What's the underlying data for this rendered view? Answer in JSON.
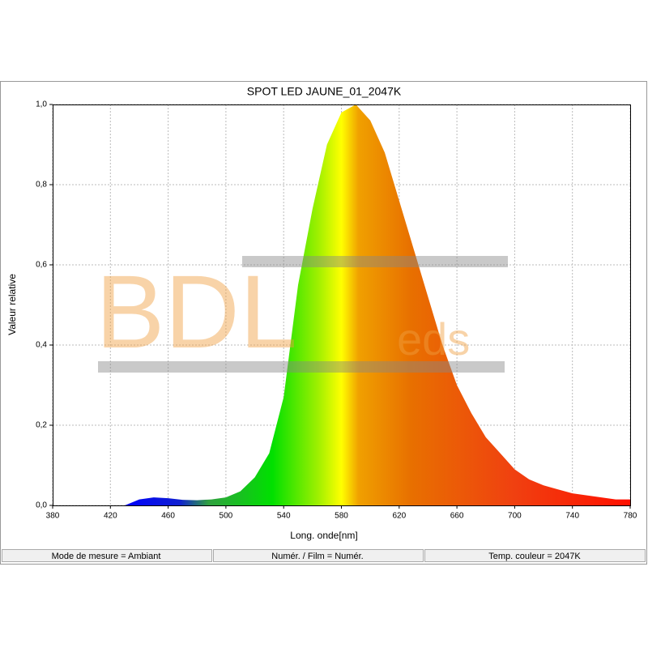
{
  "chart_data": {
    "type": "area",
    "title": "SPOT LED JAUNE_01_2047K",
    "x_label": "Long. onde[nm]",
    "y_label": "Valeur relative",
    "x": [
      430,
      440,
      450,
      460,
      470,
      480,
      490,
      500,
      510,
      520,
      530,
      540,
      550,
      560,
      570,
      580,
      590,
      600,
      610,
      620,
      630,
      640,
      650,
      660,
      670,
      680,
      690,
      700,
      710,
      720,
      730,
      740,
      750,
      760,
      770,
      780
    ],
    "values": [
      0,
      0.015,
      0.02,
      0.018,
      0.014,
      0.013,
      0.015,
      0.02,
      0.035,
      0.07,
      0.13,
      0.27,
      0.55,
      0.74,
      0.9,
      0.98,
      1.0,
      0.96,
      0.88,
      0.76,
      0.64,
      0.52,
      0.4,
      0.3,
      0.23,
      0.17,
      0.13,
      0.09,
      0.065,
      0.05,
      0.04,
      0.03,
      0.025,
      0.02,
      0.015,
      0.015
    ],
    "xlim": [
      380,
      780
    ],
    "ylim": [
      0,
      1
    ],
    "xticks": [
      380,
      420,
      460,
      500,
      540,
      580,
      620,
      660,
      700,
      740,
      780
    ],
    "yticks": [
      {
        "value": 0,
        "label": "0,0"
      },
      {
        "value": 0.2,
        "label": "0,2"
      },
      {
        "value": 0.4,
        "label": "0,4"
      },
      {
        "value": 0.6,
        "label": "0,6"
      },
      {
        "value": 0.8,
        "label": "0,8"
      },
      {
        "value": 1,
        "label": "1,0"
      }
    ],
    "grid": true,
    "watermark": {
      "main": "BDL",
      "suffix": "eds"
    }
  },
  "status_bar": [
    "Mode de mesure = Ambiant",
    "Numér. / Film = Numér.",
    "Temp. couleur = 2047K"
  ]
}
